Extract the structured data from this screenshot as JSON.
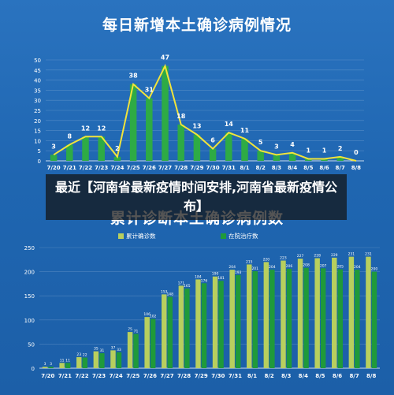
{
  "caption": "最近【河南省最新疫情时间安排,河南省最新疫情公布】",
  "colors": {
    "background": "#1f64ad",
    "line": "#f2e43a",
    "bar_green": "#2eab45",
    "bar_light": "#b8cf5e",
    "bar_dark_green": "#1f9a3a"
  },
  "chart_data": [
    {
      "type": "bar",
      "title": "每日新增本土确诊病例情况",
      "categories": [
        "7/20",
        "7/21",
        "7/22",
        "7/23",
        "7/24",
        "7/25",
        "7/26",
        "7/27",
        "7/28",
        "7/29",
        "7/30",
        "7/31",
        "8/1",
        "8/2",
        "8/3",
        "8/4",
        "8/5",
        "8/6",
        "8/7",
        "8/8"
      ],
      "series": [
        {
          "values": [
            3,
            8,
            12,
            12,
            2,
            38,
            31,
            47,
            18,
            13,
            6,
            14,
            11,
            5,
            3,
            4,
            1,
            1,
            2,
            0
          ]
        }
      ],
      "overlay_line": true,
      "ylim": [
        0,
        50
      ],
      "yticks": [
        0,
        5,
        10,
        15,
        20,
        25,
        30,
        35,
        40,
        45,
        50
      ],
      "grid": true
    },
    {
      "type": "bar",
      "title": "累计诊断本土确诊病例数",
      "categories": [
        "7/20",
        "7/21",
        "7/22",
        "7/23",
        "7/24",
        "7/25",
        "7/26",
        "7/27",
        "7/28",
        "7/29",
        "7/30",
        "7/31",
        "8/1",
        "8/2",
        "8/3",
        "8/4",
        "8/5",
        "8/6",
        "8/7",
        "8/8"
      ],
      "series": [
        {
          "name": "累计确诊数",
          "values": [
            3,
            11,
            23,
            35,
            37,
            75,
            106,
            153,
            171,
            184,
            190,
            204,
            215,
            220,
            223,
            227,
            228,
            229,
            231,
            231
          ]
        },
        {
          "name": "在院治疗数",
          "values": [
            3,
            11,
            22,
            31,
            33,
            71,
            102,
            148,
            165,
            176,
            181,
            193,
            201,
            204,
            206,
            208,
            207,
            205,
            204,
            200
          ]
        }
      ],
      "legend": "top-center",
      "ylim": [
        0,
        250
      ],
      "yticks": [
        0,
        50,
        100,
        150,
        200,
        250
      ],
      "grid": true
    }
  ]
}
